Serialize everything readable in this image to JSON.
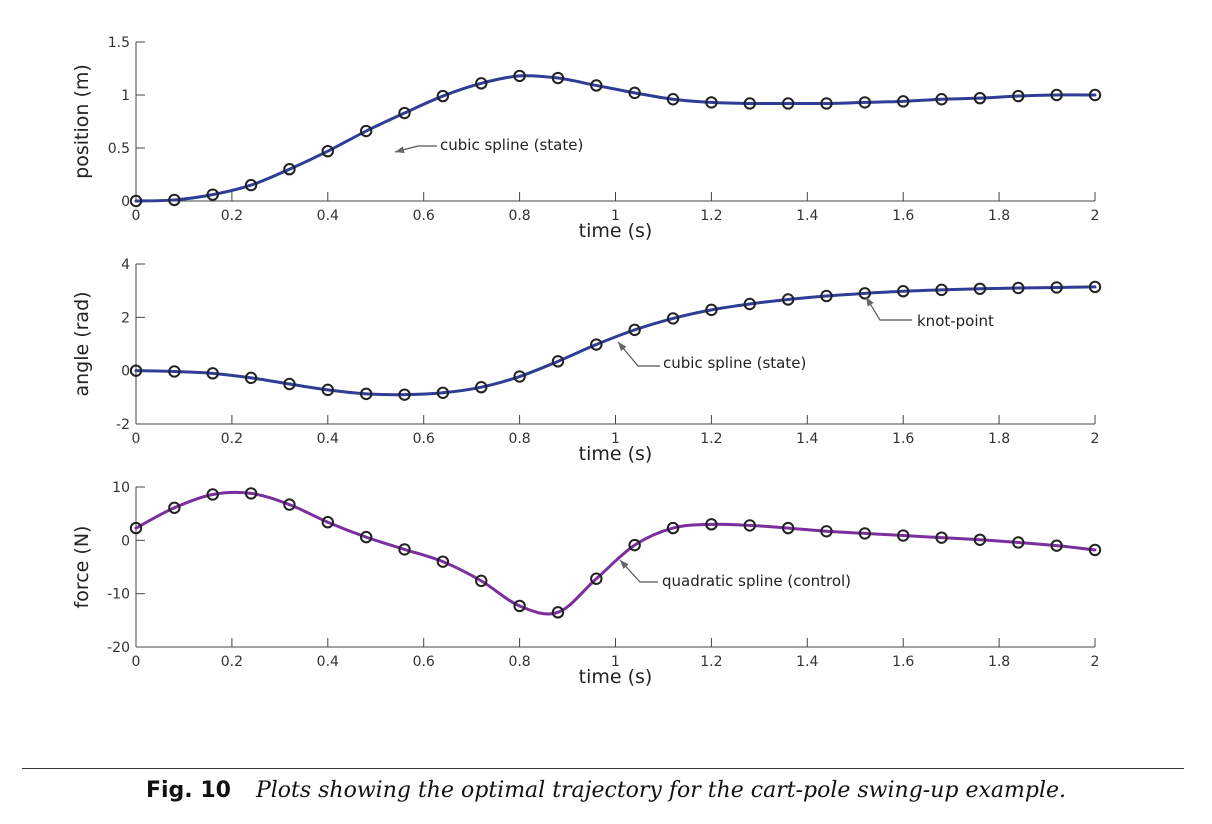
{
  "chart_data": [
    {
      "type": "line",
      "xlabel": "time (s)",
      "ylabel": "position (m)",
      "xlim": [
        0,
        2
      ],
      "ylim": [
        0,
        1.5
      ],
      "xticks": [
        "0",
        "0.2",
        "0.4",
        "0.6",
        "0.8",
        "1",
        "1.2",
        "1.4",
        "1.6",
        "1.8",
        "2"
      ],
      "yticks": [
        "0",
        "0.5",
        "1",
        "1.5"
      ],
      "series": [
        {
          "color": "#2e3d96",
          "marker": "circle-open",
          "x": [
            0,
            0.08,
            0.16,
            0.24,
            0.32,
            0.4,
            0.48,
            0.56,
            0.64,
            0.72,
            0.8,
            0.88,
            0.96,
            1.04,
            1.12,
            1.2,
            1.28,
            1.36,
            1.44,
            1.52,
            1.6,
            1.68,
            1.76,
            1.84,
            1.92,
            2.0
          ],
          "values": [
            0.0,
            0.01,
            0.06,
            0.15,
            0.3,
            0.47,
            0.66,
            0.83,
            0.99,
            1.11,
            1.18,
            1.16,
            1.09,
            1.02,
            0.96,
            0.93,
            0.92,
            0.92,
            0.92,
            0.93,
            0.94,
            0.96,
            0.97,
            0.99,
            1.0,
            1.0
          ]
        }
      ],
      "annotations": [
        {
          "text": "cubic spline (state)",
          "x": 0.54,
          "y": 0.72
        }
      ]
    },
    {
      "type": "line",
      "xlabel": "time (s)",
      "ylabel": "angle (rad)",
      "xlim": [
        0,
        2
      ],
      "ylim": [
        -2,
        4
      ],
      "xticks": [
        "0",
        "0.2",
        "0.4",
        "0.6",
        "0.8",
        "1",
        "1.2",
        "1.4",
        "1.6",
        "1.8",
        "2"
      ],
      "yticks": [
        "-2",
        "0",
        "2",
        "4"
      ],
      "series": [
        {
          "color": "#2e3d96",
          "marker": "circle-open",
          "x": [
            0,
            0.08,
            0.16,
            0.24,
            0.32,
            0.4,
            0.48,
            0.56,
            0.64,
            0.72,
            0.8,
            0.88,
            0.96,
            1.04,
            1.12,
            1.2,
            1.28,
            1.36,
            1.44,
            1.52,
            1.6,
            1.68,
            1.76,
            1.84,
            1.92,
            2.0
          ],
          "values": [
            0.0,
            -0.03,
            -0.1,
            -0.27,
            -0.5,
            -0.72,
            -0.87,
            -0.9,
            -0.83,
            -0.62,
            -0.22,
            0.35,
            0.98,
            1.53,
            1.96,
            2.28,
            2.5,
            2.67,
            2.8,
            2.9,
            2.98,
            3.03,
            3.07,
            3.1,
            3.12,
            3.14
          ]
        }
      ],
      "annotations": [
        {
          "text": "cubic spline (state)",
          "x": 1.0,
          "y": 1.2
        },
        {
          "text": "knot-point",
          "x": 1.52,
          "y": 2.9
        }
      ]
    },
    {
      "type": "line",
      "xlabel": "time (s)",
      "ylabel": "force (N)",
      "xlim": [
        0,
        2
      ],
      "ylim": [
        -20,
        10
      ],
      "xticks": [
        "0",
        "0.2",
        "0.4",
        "0.6",
        "0.8",
        "1",
        "1.2",
        "1.4",
        "1.6",
        "1.8",
        "2"
      ],
      "yticks": [
        "-20",
        "-10",
        "0",
        "10"
      ],
      "series": [
        {
          "color": "#7b2f9e",
          "marker": "circle-open",
          "x": [
            0,
            0.08,
            0.16,
            0.24,
            0.32,
            0.4,
            0.48,
            0.56,
            0.64,
            0.72,
            0.8,
            0.88,
            0.96,
            1.04,
            1.12,
            1.2,
            1.28,
            1.36,
            1.44,
            1.52,
            1.6,
            1.68,
            1.76,
            1.84,
            1.92,
            2.0
          ],
          "values": [
            2.3,
            6.1,
            8.6,
            8.8,
            6.7,
            3.4,
            0.6,
            -1.7,
            -4.0,
            -7.6,
            -12.3,
            -13.5,
            -7.2,
            -0.9,
            2.3,
            3.0,
            2.8,
            2.3,
            1.7,
            1.3,
            0.9,
            0.5,
            0.1,
            -0.4,
            -1.0,
            -1.8
          ]
        }
      ],
      "annotations": [
        {
          "text": "quadratic spline (control)",
          "x": 0.99,
          "y": -5.3
        }
      ]
    }
  ],
  "caption": {
    "label": "Fig. 10",
    "text": "Plots showing the optimal trajectory for the cart-pole swing-up example."
  }
}
